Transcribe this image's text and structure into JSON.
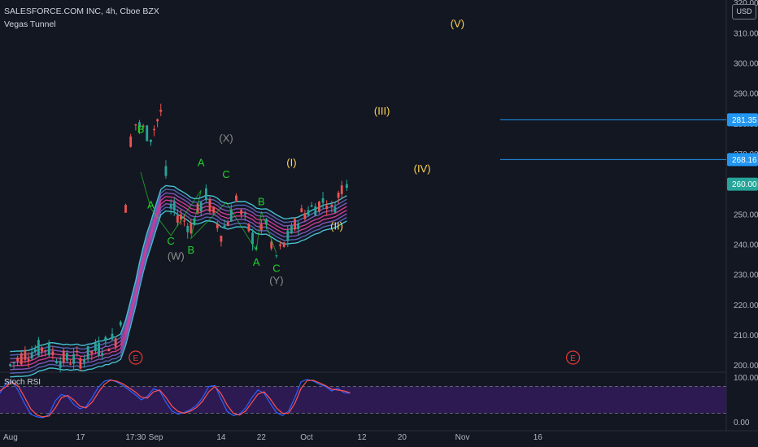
{
  "header": {
    "title": "SALESFORCE.COM INC, 4h, Cboe BZX",
    "indicator": "Vegas Tunnel",
    "oscillator": "Stoch RSI",
    "currency": "USD"
  },
  "colors": {
    "background": "#131722",
    "up": "#26a69a",
    "down": "#ef5350",
    "wave_green": "#22d12c",
    "wave_gray": "#8d8d8d",
    "wave_gold": "#ffd54f",
    "hline": "#2196f3",
    "stoch_k": "#2962ff",
    "stoch_d": "#ff5252",
    "osc_band": "#311b58",
    "event": "#e53935"
  },
  "chart_data": [
    {
      "type": "candlestick",
      "title": "SALESFORCE.COM INC, 4h, Cboe BZX",
      "ylim": [
        198,
        321
      ],
      "y_ticks": [
        200,
        210,
        220,
        230,
        240,
        250,
        260,
        270,
        280,
        290,
        300,
        310,
        320
      ],
      "y_tick_labels": [
        "200.00",
        "210.00",
        "220.00",
        "230.00",
        "240.00",
        "250.00",
        "260.00",
        "270.00",
        "280.00",
        "290.00",
        "300.00",
        "310.00",
        "320.00"
      ],
      "x_tick_labels": [
        "Aug",
        "17",
        "17:30",
        "Sep",
        "14",
        "22",
        "Oct",
        "12",
        "20",
        "Nov",
        "16"
      ],
      "grid": false,
      "close_series": [
        {
          "x": "Aug 3",
          "close": 200
        },
        {
          "x": "Aug 6",
          "close": 204
        },
        {
          "x": "Aug 10",
          "close": 206
        },
        {
          "x": "Aug 13",
          "close": 202
        },
        {
          "x": "Aug 17",
          "close": 202
        },
        {
          "x": "Aug 20",
          "close": 205
        },
        {
          "x": "Aug 24",
          "close": 209
        },
        {
          "x": "Aug 25",
          "close": 215
        },
        {
          "x": "Aug 26",
          "close": 252
        },
        {
          "x": "Aug 27",
          "close": 275
        },
        {
          "x": "Aug 28",
          "close": 280
        },
        {
          "x": "Aug 31",
          "close": 276
        },
        {
          "x": "Sep 2",
          "close": 284
        },
        {
          "x": "Sep 3",
          "close": 263
        },
        {
          "x": "Sep 4",
          "close": 252
        },
        {
          "x": "Sep 8",
          "close": 246
        },
        {
          "x": "Sep 10",
          "close": 253
        },
        {
          "x": "Sep 11",
          "close": 256
        },
        {
          "x": "Sep 14",
          "close": 244
        },
        {
          "x": "Sep 16",
          "close": 250
        },
        {
          "x": "Sep 17",
          "close": 256
        },
        {
          "x": "Sep 18",
          "close": 250
        },
        {
          "x": "Sep 21",
          "close": 240
        },
        {
          "x": "Sep 22",
          "close": 244
        },
        {
          "x": "Sep 23",
          "close": 248
        },
        {
          "x": "Sep 24",
          "close": 238
        },
        {
          "x": "Sep 25",
          "close": 236
        },
        {
          "x": "Sep 28",
          "close": 244
        },
        {
          "x": "Sep 30",
          "close": 250
        },
        {
          "x": "Oct 2",
          "close": 252
        },
        {
          "x": "Oct 5",
          "close": 255
        },
        {
          "x": "Oct 6",
          "close": 251
        },
        {
          "x": "Oct 8",
          "close": 259
        },
        {
          "x": "Oct 9",
          "close": 260
        }
      ],
      "price_lines": [
        {
          "value": 281.35,
          "label": "281.35"
        },
        {
          "value": 268.16,
          "label": "268.16"
        }
      ],
      "last_price": {
        "value": 260.0,
        "label": "260.00"
      },
      "wave_labels": [
        {
          "text": "B",
          "x": "Aug 29",
          "price": 277,
          "color": "green"
        },
        {
          "text": "A",
          "x": "Aug 31",
          "price": 252,
          "color": "green"
        },
        {
          "text": "A",
          "x": "Sep 10",
          "price": 266,
          "color": "green"
        },
        {
          "text": "C",
          "x": "Sep 4",
          "price": 240,
          "color": "green"
        },
        {
          "text": "(W)",
          "x": "Sep 5",
          "price": 235,
          "color": "gray"
        },
        {
          "text": "B",
          "x": "Sep 8",
          "price": 237,
          "color": "green"
        },
        {
          "text": "(X)",
          "x": "Sep 15",
          "price": 274,
          "color": "gray"
        },
        {
          "text": "C",
          "x": "Sep 15",
          "price": 262,
          "color": "green"
        },
        {
          "text": "B",
          "x": "Sep 22",
          "price": 253,
          "color": "green"
        },
        {
          "text": "A",
          "x": "Sep 21",
          "price": 233,
          "color": "green"
        },
        {
          "text": "C",
          "x": "Sep 25",
          "price": 231,
          "color": "green"
        },
        {
          "text": "(Y)",
          "x": "Sep 25",
          "price": 227,
          "color": "gray"
        },
        {
          "text": "(I)",
          "x": "Sep 28",
          "price": 266,
          "color": "gold"
        },
        {
          "text": "(II)",
          "x": "Oct 7",
          "price": 245,
          "color": "gold"
        },
        {
          "text": "(III)",
          "x": "Oct 16",
          "price": 283,
          "color": "gold"
        },
        {
          "text": "(IV)",
          "x": "Oct 24",
          "price": 264,
          "color": "gold"
        },
        {
          "text": "(V)",
          "x": "Oct 31",
          "price": 312,
          "color": "gold"
        }
      ],
      "event_markers": [
        {
          "text": "E",
          "x": "Aug 28"
        },
        {
          "text": "E",
          "x": "Nov 23"
        }
      ]
    },
    {
      "type": "line",
      "title": "Stoch RSI",
      "ylim": [
        -10,
        110
      ],
      "y_tick_labels": [
        "100.00",
        "0.00"
      ],
      "bands": [
        20,
        80
      ],
      "series": [
        {
          "name": "K",
          "values": [
            65,
            88,
            92,
            70,
            42,
            18,
            12,
            10,
            18,
            48,
            62,
            58,
            40,
            30,
            35,
            55,
            78,
            92,
            95,
            90,
            82,
            72,
            62,
            50,
            58,
            75,
            70,
            45,
            25,
            18,
            22,
            28,
            38,
            55,
            80,
            82,
            52,
            24,
            15,
            18,
            32,
            55,
            72,
            65,
            42,
            22,
            15,
            25,
            55,
            90,
            96,
            92,
            85,
            80,
            70,
            76,
            66,
            65
          ]
        },
        {
          "name": "D",
          "values": [
            70,
            80,
            90,
            80,
            56,
            30,
            16,
            12,
            14,
            32,
            55,
            60,
            50,
            36,
            32,
            45,
            66,
            85,
            94,
            92,
            86,
            77,
            68,
            56,
            54,
            68,
            72,
            56,
            36,
            24,
            20,
            25,
            33,
            47,
            68,
            80,
            64,
            38,
            20,
            16,
            25,
            44,
            63,
            68,
            52,
            32,
            20,
            20,
            42,
            75,
            93,
            94,
            88,
            82,
            74,
            72,
            70,
            66
          ]
        }
      ]
    }
  ]
}
